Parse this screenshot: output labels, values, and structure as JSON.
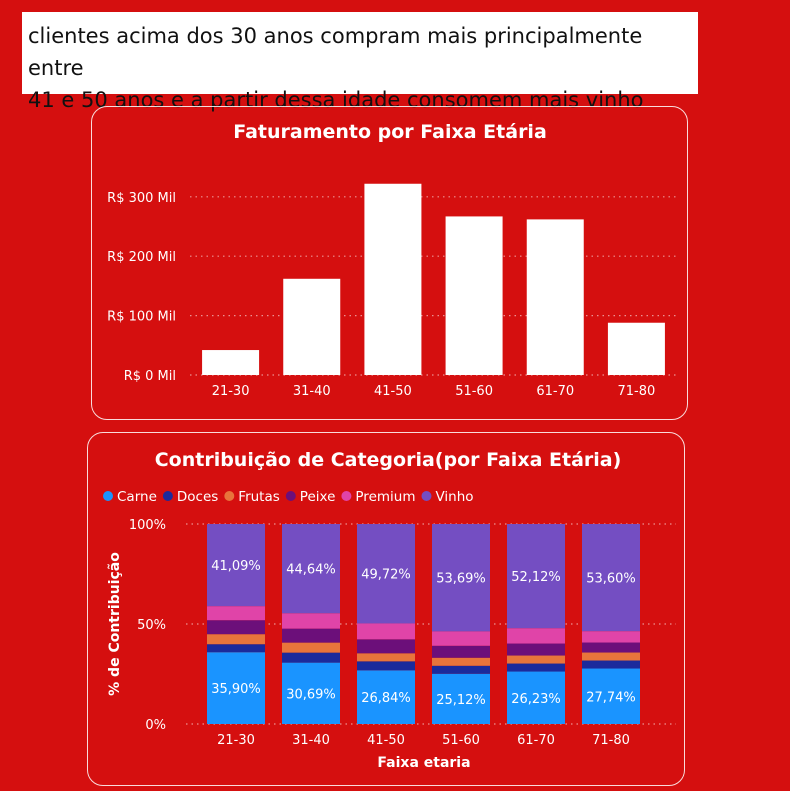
{
  "note": {
    "line1": "clientes acima dos 30 anos compram mais principalmente entre",
    "line2": "41 e 50 anos e a partir dessa idade consomem mais vinho"
  },
  "chart_data": [
    {
      "type": "bar",
      "title": "Faturamento por Faixa Etária",
      "categories": [
        "21-30",
        "31-40",
        "41-50",
        "51-60",
        "61-70",
        "71-80"
      ],
      "values": [
        42000,
        162000,
        322000,
        267000,
        262000,
        88000
      ],
      "yticks": [
        0,
        100000,
        200000,
        300000
      ],
      "ytick_labels": [
        "R$ 0 Mil",
        "R$ 100 Mil",
        "R$ 200 Mil",
        "R$ 300 Mil"
      ],
      "ylim": [
        0,
        330000
      ],
      "grid": true,
      "bar_color": "#ffffff"
    },
    {
      "type": "bar",
      "stacked": true,
      "title": "Contribuição de Categoria(por Faixa Etária)",
      "xlabel": "Faixa etaria",
      "ylabel": "% de Contribuição",
      "legend_position": "top-left",
      "categories": [
        "21-30",
        "31-40",
        "41-50",
        "51-60",
        "61-70",
        "71-80"
      ],
      "series": [
        {
          "name": "Carne",
          "color": "#1a94ff",
          "values": [
            35.9,
            30.69,
            26.84,
            25.12,
            26.23,
            27.74
          ],
          "labels": [
            "35,90%",
            "30,69%",
            "26,84%",
            "25,12%",
            "26,23%",
            "27,74%"
          ]
        },
        {
          "name": "Doces",
          "color": "#1b2a9c",
          "values": [
            4,
            5,
            4.5,
            4,
            4,
            4
          ]
        },
        {
          "name": "Frutas",
          "color": "#e8743b",
          "values": [
            5,
            5,
            4,
            4,
            4,
            4
          ]
        },
        {
          "name": "Peixe",
          "color": "#6c0f7a",
          "values": [
            7,
            7,
            7,
            6,
            6,
            5
          ]
        },
        {
          "name": "Premium",
          "color": "#e044a8",
          "values": [
            7,
            7.67,
            7.94,
            7.19,
            7.65,
            5.66
          ]
        },
        {
          "name": "Vinho",
          "color": "#744ec2",
          "values": [
            41.09,
            44.64,
            49.72,
            53.69,
            52.12,
            53.6
          ],
          "labels": [
            "41,09%",
            "44,64%",
            "49,72%",
            "53,69%",
            "52,12%",
            "53,60%"
          ]
        }
      ],
      "yticks": [
        0,
        50,
        100
      ],
      "ytick_labels": [
        "0%",
        "50%",
        "100%"
      ],
      "ylim": [
        0,
        100
      ],
      "grid": true
    }
  ]
}
